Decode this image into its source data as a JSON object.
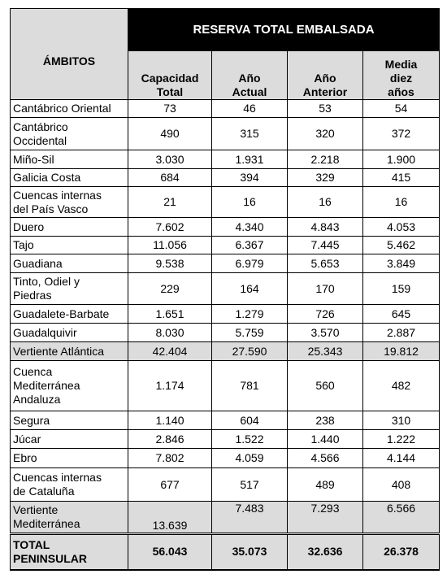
{
  "header": {
    "title": "RESERVA TOTAL EMBALSADA",
    "row_label": "ÁMBITOS",
    "columns": [
      "Capacidad\nTotal",
      "Año\nActual",
      "Año\nAnterior",
      "Media\ndiez\naños"
    ]
  },
  "table": {
    "rows": [
      [
        "Cantábrico Oriental",
        "73",
        "46",
        "53",
        "54"
      ],
      [
        "Cantábrico\nOccidental",
        "490",
        "315",
        "320",
        "372"
      ],
      [
        "Miño-Sil",
        "3.030",
        "1.931",
        "2.218",
        "1.900"
      ],
      [
        "Galicia Costa",
        "684",
        "394",
        "329",
        "415"
      ],
      [
        "Cuencas internas\ndel País Vasco",
        "21",
        "16",
        "16",
        "16"
      ],
      [
        "Duero",
        "7.602",
        "4.340",
        "4.843",
        "4.053"
      ],
      [
        "Tajo",
        "11.056",
        "6.367",
        "7.445",
        "5.462"
      ],
      [
        "Guadiana",
        "9.538",
        "6.979",
        "5.653",
        "3.849"
      ],
      [
        "Tinto, Odiel y\nPiedras",
        "229",
        "164",
        "170",
        "159"
      ],
      [
        "Guadalete-Barbate",
        "1.651",
        "1.279",
        "726",
        "645"
      ],
      [
        "Guadalquivir",
        "8.030",
        "5.759",
        "3.570",
        "2.887"
      ],
      [
        "Vertiente Atlántica",
        "42.404",
        "27.590",
        "25.343",
        "19.812"
      ],
      [
        "Cuenca\nMediterránea\nAndaluza",
        "1.174",
        "781",
        "560",
        "482"
      ],
      [
        "Segura",
        "1.140",
        "604",
        "238",
        "310"
      ],
      [
        "Júcar",
        "2.846",
        "1.522",
        "1.440",
        "1.222"
      ],
      [
        "Ebro",
        "7.802",
        "4.059",
        "4.566",
        "4.144"
      ],
      [
        "Cuencas internas\nde Cataluña",
        "677",
        "517",
        "489",
        "408"
      ],
      [
        "Vertiente\nMediterránea",
        "13.639",
        "7.483",
        "7.293",
        "6.566"
      ],
      [
        "TOTAL\nPENINSULAR",
        "56.043",
        "35.073",
        "32.636",
        "26.378"
      ]
    ]
  }
}
